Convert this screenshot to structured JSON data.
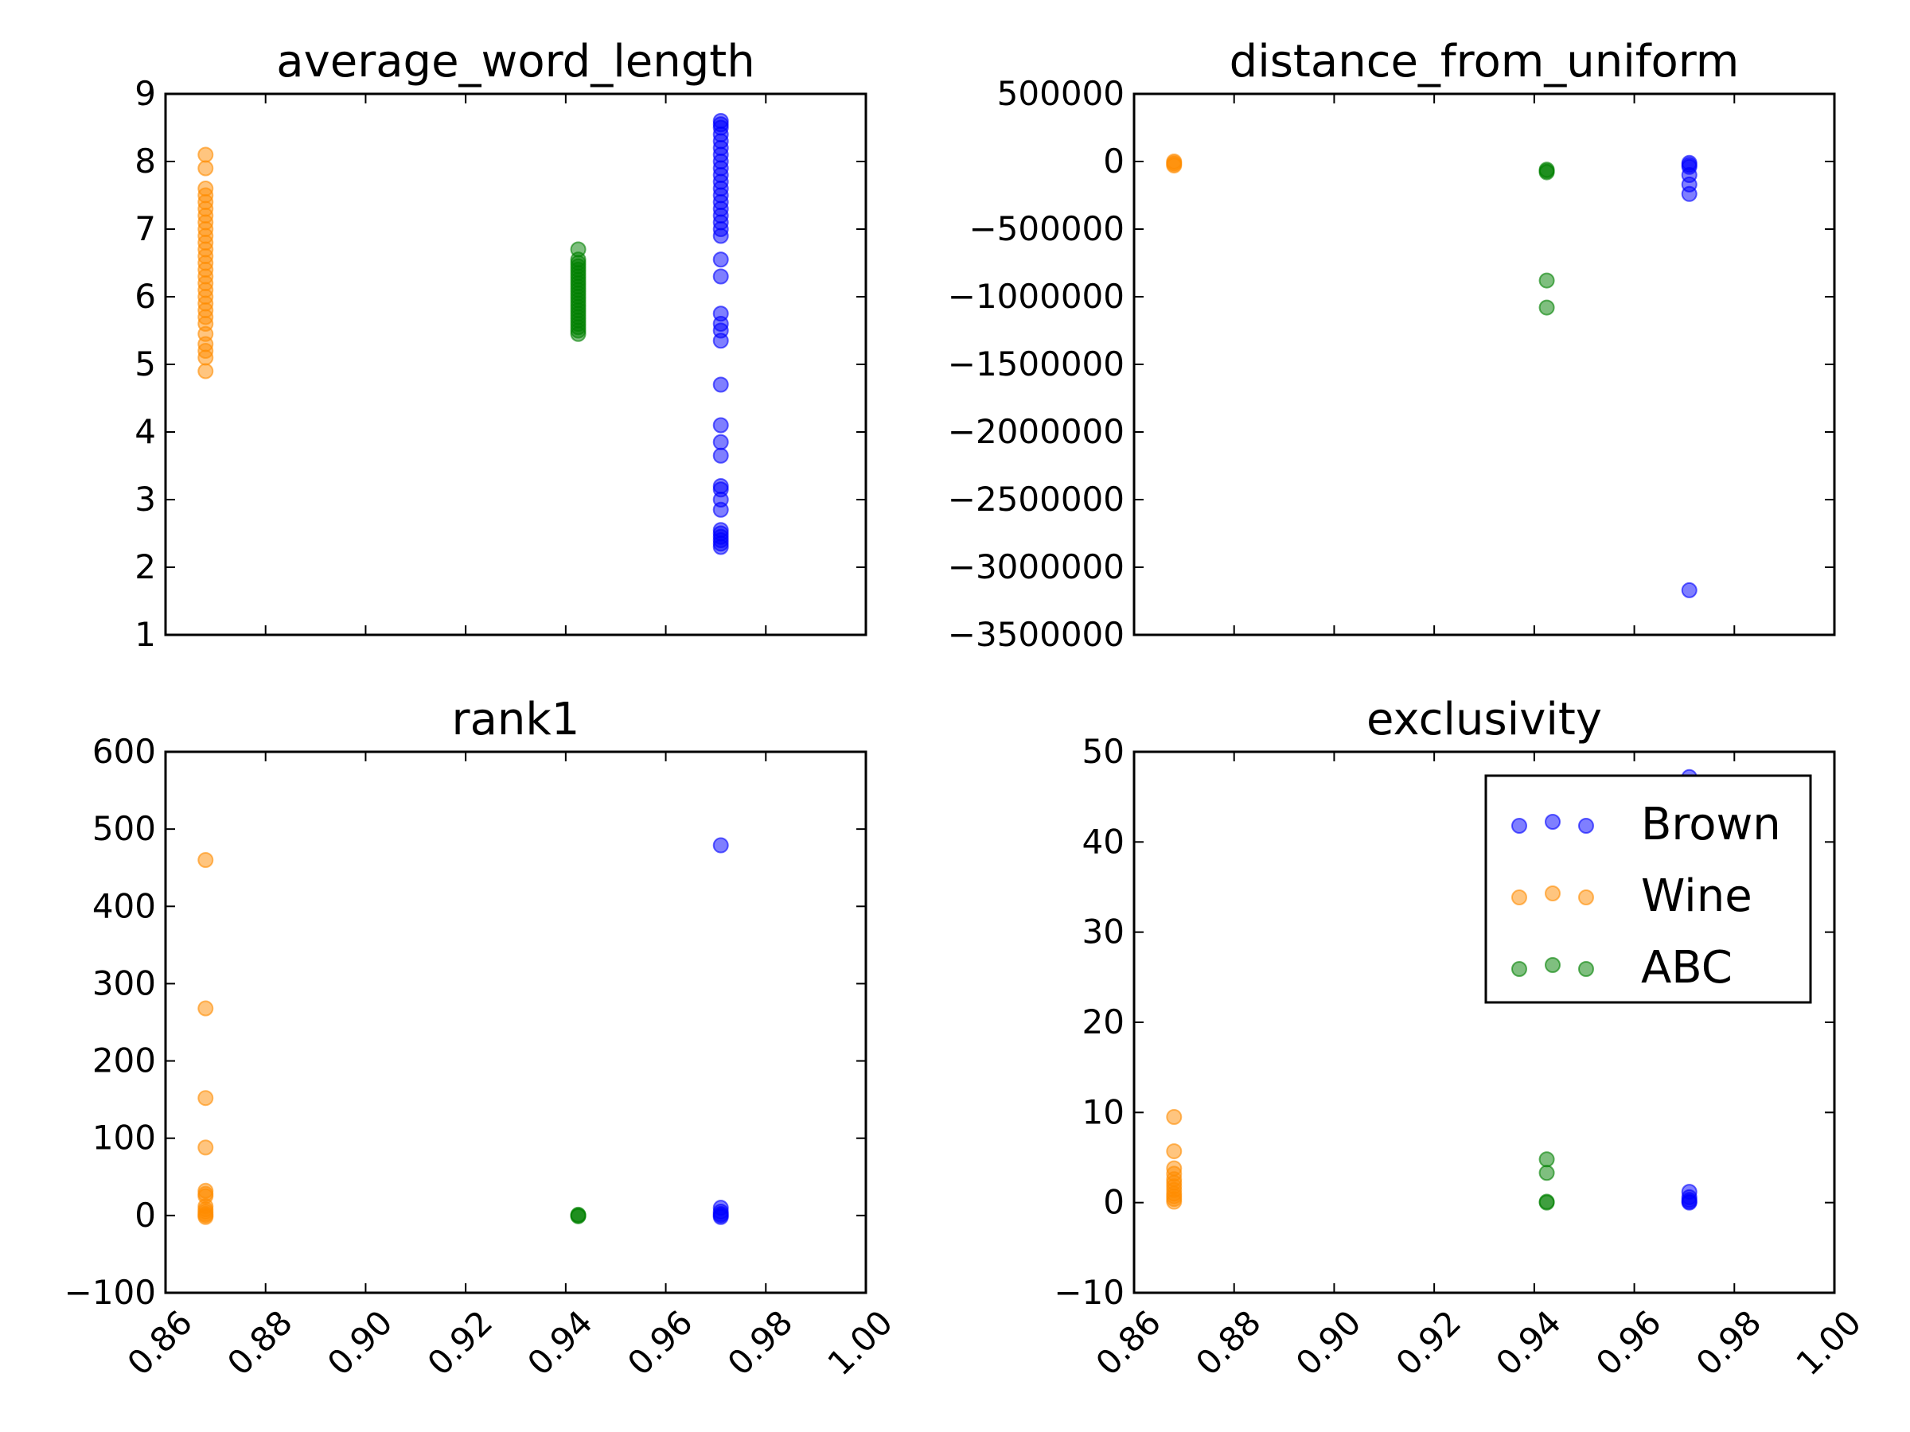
{
  "chart_data": [
    {
      "type": "scatter",
      "title": "average_word_length",
      "xlim": [
        0.86,
        1.0
      ],
      "ylim": [
        1,
        9
      ],
      "xticks": [
        "0.86",
        "0.88",
        "0.90",
        "0.92",
        "0.94",
        "0.96",
        "0.98",
        "1.00"
      ],
      "yticks": [
        "1",
        "2",
        "3",
        "4",
        "5",
        "6",
        "7",
        "8",
        "9"
      ],
      "show_x_tick_labels": false,
      "series": [
        {
          "name": "Brown",
          "x": 0.971,
          "y": [
            8.6,
            8.55,
            8.5,
            8.4,
            8.3,
            8.2,
            8.1,
            8.0,
            7.9,
            7.8,
            7.7,
            7.6,
            7.5,
            7.4,
            7.3,
            7.2,
            7.1,
            7.0,
            6.9,
            6.55,
            6.3,
            5.75,
            5.6,
            5.5,
            5.35,
            4.7,
            4.1,
            3.85,
            3.65,
            3.2,
            3.15,
            3.0,
            2.85,
            2.55,
            2.5,
            2.45,
            2.4,
            2.35,
            2.3
          ]
        },
        {
          "name": "Wine",
          "x": 0.868,
          "y": [
            8.1,
            7.9,
            7.6,
            7.5,
            7.4,
            7.3,
            7.2,
            7.1,
            7.0,
            6.9,
            6.8,
            6.7,
            6.6,
            6.5,
            6.4,
            6.3,
            6.2,
            6.1,
            6.0,
            5.9,
            5.8,
            5.7,
            5.6,
            5.45,
            5.3,
            5.2,
            5.1,
            4.9
          ]
        },
        {
          "name": "ABC",
          "x": 0.9425,
          "y": [
            6.7,
            6.55,
            6.5,
            6.45,
            6.4,
            6.35,
            6.3,
            6.25,
            6.2,
            6.15,
            6.1,
            6.05,
            6.0,
            5.95,
            5.9,
            5.85,
            5.8,
            5.75,
            5.7,
            5.65,
            5.6,
            5.55,
            5.5,
            5.45
          ]
        }
      ]
    },
    {
      "type": "scatter",
      "title": "distance_from_uniform",
      "xlim": [
        0.86,
        1.0
      ],
      "ylim": [
        -3500000,
        500000
      ],
      "xticks": [
        "0.86",
        "0.88",
        "0.90",
        "0.92",
        "0.94",
        "0.96",
        "0.98",
        "1.00"
      ],
      "yticks": [
        "500000",
        "0",
        "−500000",
        "−1000000",
        "−1500000",
        "−2000000",
        "−2500000",
        "−3000000",
        "−3500000"
      ],
      "show_x_tick_labels": false,
      "series": [
        {
          "name": "Brown",
          "x": 0.971,
          "y": [
            -10000,
            -25000,
            -40000,
            -100000,
            -170000,
            -240000,
            -3170000
          ]
        },
        {
          "name": "Wine",
          "x": 0.868,
          "y": [
            0,
            -10000,
            -20000,
            -30000
          ]
        },
        {
          "name": "ABC",
          "x": 0.9425,
          "y": [
            -60000,
            -70000,
            -80000,
            -880000,
            -1080000
          ]
        }
      ]
    },
    {
      "type": "scatter",
      "title": "rank1",
      "xlim": [
        0.86,
        1.0
      ],
      "ylim": [
        -100,
        600
      ],
      "xticks": [
        "0.86",
        "0.88",
        "0.90",
        "0.92",
        "0.94",
        "0.96",
        "0.98",
        "1.00"
      ],
      "yticks": [
        "600",
        "500",
        "400",
        "300",
        "200",
        "100",
        "0",
        "−100"
      ],
      "show_x_tick_labels": true,
      "series": [
        {
          "name": "Brown",
          "x": 0.971,
          "y": [
            479,
            10,
            5,
            2,
            0,
            -2
          ]
        },
        {
          "name": "Wine",
          "x": 0.868,
          "y": [
            460,
            268,
            152,
            88,
            32,
            28,
            25,
            12,
            8,
            5,
            2,
            0,
            -2
          ]
        },
        {
          "name": "ABC",
          "x": 0.9425,
          "y": [
            1,
            0,
            -1
          ]
        }
      ]
    },
    {
      "type": "scatter",
      "title": "exclusivity",
      "xlim": [
        0.86,
        1.0
      ],
      "ylim": [
        -10,
        50
      ],
      "xticks": [
        "0.86",
        "0.88",
        "0.90",
        "0.92",
        "0.94",
        "0.96",
        "0.98",
        "1.00"
      ],
      "yticks": [
        "50",
        "40",
        "30",
        "20",
        "10",
        "0",
        "−10"
      ],
      "show_x_tick_labels": true,
      "legend_position": "upper-right",
      "series": [
        {
          "name": "Brown",
          "x": 0.971,
          "y": [
            47.2,
            1.2,
            0.6,
            0.3,
            0.1,
            0
          ]
        },
        {
          "name": "Wine",
          "x": 0.868,
          "y": [
            9.5,
            5.7,
            3.8,
            3.2,
            2.6,
            2.2,
            1.8,
            1.4,
            1.0,
            0.7,
            0.4,
            0.1
          ]
        },
        {
          "name": "ABC",
          "x": 0.9425,
          "y": [
            4.8,
            3.3,
            0.1,
            0
          ]
        }
      ]
    }
  ],
  "colors": {
    "Brown": "#0000ff",
    "Wine": "#ff8c00",
    "ABC": "#008000"
  },
  "legend": {
    "labels": [
      "Brown",
      "Wine",
      "ABC"
    ]
  }
}
